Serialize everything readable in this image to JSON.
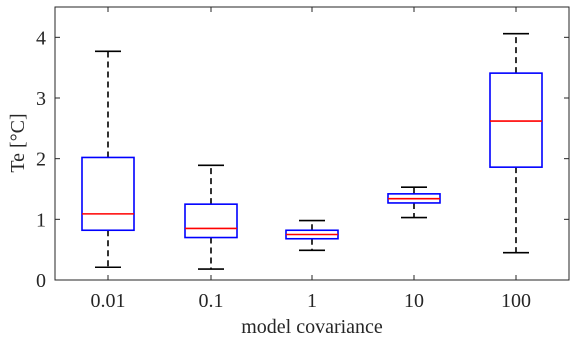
{
  "chart_data": {
    "type": "boxplot",
    "title": "",
    "xlabel": "model covariance",
    "ylabel": "Te [°C]",
    "categories": [
      "0.01",
      "0.1",
      "1",
      "10",
      "100"
    ],
    "ylim": [
      0,
      4.5
    ],
    "yticks": [
      0,
      1,
      2,
      3,
      4
    ],
    "grid": false,
    "legend": "none",
    "boxes": [
      {
        "category": "0.01",
        "whisker_low": 0.21,
        "q1": 0.82,
        "median": 1.09,
        "q3": 2.02,
        "whisker_high": 3.77
      },
      {
        "category": "0.1",
        "whisker_low": 0.18,
        "q1": 0.7,
        "median": 0.85,
        "q3": 1.25,
        "whisker_high": 1.89
      },
      {
        "category": "1",
        "whisker_low": 0.49,
        "q1": 0.68,
        "median": 0.75,
        "q3": 0.82,
        "whisker_high": 0.98
      },
      {
        "category": "10",
        "whisker_low": 1.03,
        "q1": 1.27,
        "median": 1.34,
        "q3": 1.42,
        "whisker_high": 1.53
      },
      {
        "category": "100",
        "whisker_low": 0.45,
        "q1": 1.86,
        "median": 2.62,
        "q3": 3.41,
        "whisker_high": 4.06
      }
    ],
    "colors": {
      "box": "#0000ff",
      "median": "#ff0000",
      "whisker": "#000000",
      "axis": "#262626"
    }
  }
}
